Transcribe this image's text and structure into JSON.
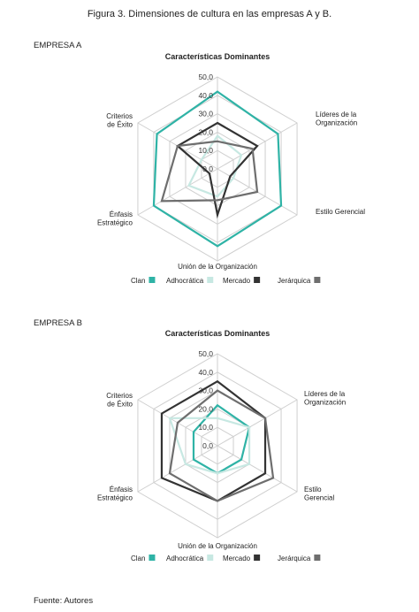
{
  "figure_title": "Figura 3. Dimensiones de cultura en las empresas A y B.",
  "source": "Fuente: Autores",
  "chart_data": [
    {
      "type": "radar",
      "panel_label": "EMPRESA A",
      "title": "Características Dominantes",
      "axes": [
        "Características Dominantes",
        "Líderes de la Organización",
        "Estilo Gerencial",
        "Unión de la Organización",
        "Énfasis Estratégico",
        "Criterios de Éxito"
      ],
      "axis_label_lines": [
        [],
        [
          "Líderes de la",
          "Organización"
        ],
        [
          "Estilo Gerencial"
        ],
        [
          "Unión de la Organización"
        ],
        [
          "Énfasis",
          "Estratégico"
        ],
        [
          "Criterios",
          "de Éxito"
        ]
      ],
      "ticks": [
        "0,0",
        "10,0",
        "20,0",
        "30,0",
        "40,0",
        "50,0"
      ],
      "rmax": 50,
      "series": [
        {
          "name": "Clan",
          "color": "#2fb3a6",
          "values": [
            42,
            38,
            40,
            42,
            40,
            38
          ]
        },
        {
          "name": "Adhocrática",
          "color": "#c7e8e2",
          "values": [
            18,
            15,
            10,
            15,
            18,
            10
          ]
        },
        {
          "name": "Mercado",
          "color": "#333333",
          "values": [
            25,
            25,
            8,
            25,
            5,
            25
          ]
        },
        {
          "name": "Jerárquica",
          "color": "#6e6e6e",
          "values": [
            15,
            22,
            25,
            17,
            35,
            25
          ]
        }
      ]
    },
    {
      "type": "radar",
      "panel_label": "EMPRESA B",
      "title": "Características Dominantes",
      "axes": [
        "Características Dominantes",
        "Líderes de la Organización",
        "Estilo Gerencial",
        "Unión de la Organización",
        "Énfasis Estratégico",
        "Criterios de Éxito"
      ],
      "axis_label_lines": [
        [],
        [
          "Líderes de la",
          "Organización"
        ],
        [
          "Estilo",
          "Gerencial"
        ],
        [
          "Unión de la Organización"
        ],
        [
          "Énfasis",
          "Estratégico"
        ],
        [
          "Criterios",
          "de Éxito"
        ]
      ],
      "ticks": [
        "0,0",
        "10,0",
        "20,0",
        "30,0",
        "40,0",
        "50,0"
      ],
      "rmax": 50,
      "series": [
        {
          "name": "Clan",
          "color": "#2fb3a6",
          "values": [
            22,
            20,
            15,
            15,
            15,
            15
          ]
        },
        {
          "name": "Adhocrática",
          "color": "#c7e8e2",
          "values": [
            15,
            20,
            20,
            15,
            20,
            30
          ]
        },
        {
          "name": "Mercado",
          "color": "#333333",
          "values": [
            35,
            30,
            30,
            30,
            35,
            35
          ]
        },
        {
          "name": "Jerárquica",
          "color": "#6e6e6e",
          "values": [
            30,
            30,
            35,
            30,
            30,
            25
          ]
        }
      ]
    }
  ]
}
